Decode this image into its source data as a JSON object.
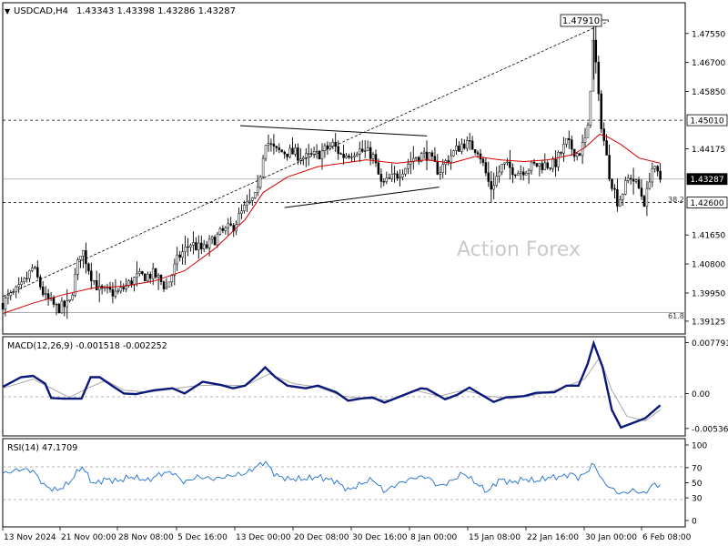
{
  "header": {
    "symbol": "USDCAD,H4",
    "ohlc": "1.43343 1.43398 1.43286 1.43287"
  },
  "macd_header": "MACD(12,26,9) -0.001518 -0.002252",
  "rsi_header": "RSI(14) 47.1709",
  "watermark": "Action Forex",
  "annotations": {
    "high_label": "1.47910",
    "fib_382": "38.2",
    "fib_618": "61.8"
  },
  "colors": {
    "background": "#ffffff",
    "candle": "#000000",
    "ma": "#d40000",
    "macd_line": "#0b1a7a",
    "signal_line": "#a8a8a8",
    "rsi_line": "#1e6fd0",
    "grid": "#d8d8d8"
  },
  "chart_data": [
    {
      "type": "candlestick",
      "ylim": [
        1.3875,
        1.4845
      ],
      "price_ticks": [
        "1.47550",
        "1.46700",
        "1.45850",
        "1.44175",
        "1.41650",
        "1.40800",
        "1.39950",
        "1.39125"
      ],
      "price_tick_values": [
        1.4755,
        1.467,
        1.4585,
        1.44175,
        1.4165,
        1.408,
        1.3995,
        1.39125
      ],
      "x_labels": [
        "13 Nov 2024",
        "21 Nov 00:00",
        "28 Nov 08:00",
        "5 Dec 16:00",
        "13 Dec 00:00",
        "20 Dec 08:00",
        "30 Dec 16:00",
        "8 Jan 00:00",
        "15 Jan 08:00",
        "22 Jan 16:00",
        "30 Jan 00:00",
        "6 Feb 08:00"
      ],
      "levels": [
        {
          "label": "1.45010",
          "value": 1.4501,
          "style": "dashed"
        },
        {
          "label": "1.43287",
          "value": 1.43287,
          "style": "solid"
        },
        {
          "label": "1.42600",
          "value": 1.426,
          "style": "dashed"
        },
        {
          "value": 1.39375,
          "style": "solid"
        }
      ],
      "trendline": {
        "from": [
          0,
          1.3985
        ],
        "to": [
          1.0,
          1.4791
        ]
      },
      "triangle": {
        "upper": {
          "from": [
            0.392,
            1.4485
          ],
          "to": [
            0.7,
            1.4455
          ]
        },
        "lower": {
          "from": [
            0.465,
            1.4245
          ],
          "to": [
            0.72,
            1.4305
          ]
        }
      },
      "close_path": [
        [
          0,
          1.3965
        ],
        [
          0.03,
          1.401
        ],
        [
          0.05,
          1.407
        ],
        [
          0.07,
          1.398
        ],
        [
          0.09,
          1.395
        ],
        [
          0.11,
          1.396
        ],
        [
          0.13,
          1.413
        ],
        [
          0.145,
          1.405
        ],
        [
          0.16,
          1.4
        ],
        [
          0.19,
          1.3995
        ],
        [
          0.22,
          1.404
        ],
        [
          0.25,
          1.405
        ],
        [
          0.27,
          1.401
        ],
        [
          0.29,
          1.41
        ],
        [
          0.31,
          1.414
        ],
        [
          0.33,
          1.412
        ],
        [
          0.36,
          1.417
        ],
        [
          0.38,
          1.419
        ],
        [
          0.4,
          1.4245
        ],
        [
          0.42,
          1.428
        ],
        [
          0.433,
          1.4445
        ],
        [
          0.45,
          1.441
        ],
        [
          0.48,
          1.4405
        ],
        [
          0.5,
          1.439
        ],
        [
          0.52,
          1.44
        ],
        [
          0.545,
          1.443
        ],
        [
          0.56,
          1.4395
        ],
        [
          0.585,
          1.4415
        ],
        [
          0.61,
          1.44
        ],
        [
          0.625,
          1.431
        ],
        [
          0.65,
          1.434
        ],
        [
          0.68,
          1.4395
        ],
        [
          0.7,
          1.44
        ],
        [
          0.72,
          1.435
        ],
        [
          0.735,
          1.439
        ],
        [
          0.76,
          1.4435
        ],
        [
          0.785,
          1.4415
        ],
        [
          0.805,
          1.43
        ],
        [
          0.825,
          1.437
        ],
        [
          0.85,
          1.435
        ],
        [
          0.88,
          1.437
        ],
        [
          0.91,
          1.437
        ],
        [
          0.93,
          1.4435
        ],
        [
          0.95,
          1.44
        ],
        [
          0.965,
          1.446
        ],
        [
          0.975,
          1.475
        ],
        [
          0.985,
          1.452
        ],
        [
          1.0,
          1.435
        ],
        [
          1.015,
          1.426
        ],
        [
          1.035,
          1.434
        ],
        [
          1.05,
          1.43
        ],
        [
          1.06,
          1.4255
        ],
        [
          1.07,
          1.4365
        ],
        [
          1.085,
          1.4329
        ]
      ],
      "ma_path": [
        [
          0,
          1.3935
        ],
        [
          0.05,
          1.3965
        ],
        [
          0.1,
          1.399
        ],
        [
          0.15,
          1.401
        ],
        [
          0.2,
          1.4015
        ],
        [
          0.25,
          1.403
        ],
        [
          0.3,
          1.406
        ],
        [
          0.35,
          1.4125
        ],
        [
          0.4,
          1.421
        ],
        [
          0.43,
          1.429
        ],
        [
          0.47,
          1.4335
        ],
        [
          0.52,
          1.4365
        ],
        [
          0.56,
          1.4375
        ],
        [
          0.6,
          1.4385
        ],
        [
          0.65,
          1.4375
        ],
        [
          0.7,
          1.4385
        ],
        [
          0.74,
          1.4375
        ],
        [
          0.78,
          1.4395
        ],
        [
          0.82,
          1.4385
        ],
        [
          0.86,
          1.438
        ],
        [
          0.9,
          1.4385
        ],
        [
          0.94,
          1.44
        ],
        [
          0.96,
          1.442
        ],
        [
          0.985,
          1.446
        ],
        [
          1.0,
          1.445
        ],
        [
          1.02,
          1.443
        ],
        [
          1.05,
          1.439
        ],
        [
          1.085,
          1.4375
        ]
      ]
    },
    {
      "type": "line",
      "name": "MACD(12,26,9)",
      "ylim": [
        -0.0065,
        0.0087
      ],
      "y_ticks": [
        "0.007791",
        "0.00",
        "-0.005367"
      ],
      "y_tick_values": [
        0.007791,
        0.0,
        -0.005367
      ],
      "macd": [
        [
          0,
          0.001
        ],
        [
          0.03,
          0.0025
        ],
        [
          0.05,
          0.0027
        ],
        [
          0.07,
          0.0015
        ],
        [
          0.08,
          -0.0007
        ],
        [
          0.1,
          -0.0008
        ],
        [
          0.13,
          -0.0008
        ],
        [
          0.145,
          0.0025
        ],
        [
          0.16,
          0.0025
        ],
        [
          0.18,
          0.0012
        ],
        [
          0.2,
          0.0
        ],
        [
          0.22,
          -0.0001
        ],
        [
          0.25,
          0.0005
        ],
        [
          0.28,
          0.0008
        ],
        [
          0.3,
          0.0
        ],
        [
          0.33,
          0.0018
        ],
        [
          0.36,
          0.0013
        ],
        [
          0.38,
          0.0008
        ],
        [
          0.4,
          0.0012
        ],
        [
          0.42,
          0.0028
        ],
        [
          0.433,
          0.004
        ],
        [
          0.45,
          0.0025
        ],
        [
          0.47,
          0.0012
        ],
        [
          0.5,
          0.0008
        ],
        [
          0.52,
          0.0012
        ],
        [
          0.55,
          0.0002
        ],
        [
          0.57,
          -0.0011
        ],
        [
          0.59,
          -0.0008
        ],
        [
          0.61,
          -0.0006
        ],
        [
          0.63,
          -0.0014
        ],
        [
          0.66,
          -0.0003
        ],
        [
          0.69,
          0.0008
        ],
        [
          0.7,
          0.0007
        ],
        [
          0.73,
          -0.0009
        ],
        [
          0.75,
          -0.0002
        ],
        [
          0.77,
          0.0009
        ],
        [
          0.79,
          -0.0002
        ],
        [
          0.81,
          -0.0013
        ],
        [
          0.83,
          -0.0006
        ],
        [
          0.86,
          -0.0004
        ],
        [
          0.88,
          0.0001
        ],
        [
          0.91,
          0.0002
        ],
        [
          0.93,
          0.0012
        ],
        [
          0.95,
          0.0012
        ],
        [
          0.965,
          0.0045
        ],
        [
          0.975,
          0.0077
        ],
        [
          0.99,
          0.004
        ],
        [
          1.005,
          -0.0025
        ],
        [
          1.02,
          -0.0052
        ],
        [
          1.04,
          -0.0045
        ],
        [
          1.06,
          -0.0038
        ],
        [
          1.085,
          -0.0018
        ]
      ],
      "signal": [
        [
          0,
          0.0008
        ],
        [
          0.05,
          0.0022
        ],
        [
          0.08,
          0.0008
        ],
        [
          0.11,
          -0.0006
        ],
        [
          0.14,
          0.0008
        ],
        [
          0.17,
          0.002
        ],
        [
          0.2,
          0.0005
        ],
        [
          0.24,
          0.0002
        ],
        [
          0.28,
          0.0007
        ],
        [
          0.32,
          0.0012
        ],
        [
          0.36,
          0.0013
        ],
        [
          0.4,
          0.0012
        ],
        [
          0.44,
          0.003
        ],
        [
          0.48,
          0.0015
        ],
        [
          0.52,
          0.001
        ],
        [
          0.56,
          -0.0004
        ],
        [
          0.6,
          -0.0008
        ],
        [
          0.64,
          -0.001
        ],
        [
          0.68,
          0.0005
        ],
        [
          0.72,
          -0.0004
        ],
        [
          0.76,
          0.0005
        ],
        [
          0.8,
          -0.0004
        ],
        [
          0.84,
          -0.0008
        ],
        [
          0.88,
          -0.0002
        ],
        [
          0.92,
          0.0007
        ],
        [
          0.96,
          0.0022
        ],
        [
          0.985,
          0.0055
        ],
        [
          1.005,
          0.0005
        ],
        [
          1.03,
          -0.0035
        ],
        [
          1.06,
          -0.0042
        ],
        [
          1.085,
          -0.0025
        ]
      ]
    },
    {
      "type": "line",
      "name": "RSI(14)",
      "ylim": [
        0,
        100
      ],
      "y_ticks": [
        "100",
        "70",
        "50",
        "30",
        "0"
      ],
      "y_tick_values": [
        100,
        70,
        50,
        30,
        0
      ],
      "rsi_path": [
        [
          0,
          62
        ],
        [
          0.03,
          68
        ],
        [
          0.05,
          66
        ],
        [
          0.07,
          45
        ],
        [
          0.09,
          40
        ],
        [
          0.11,
          50
        ],
        [
          0.13,
          72
        ],
        [
          0.15,
          48
        ],
        [
          0.17,
          55
        ],
        [
          0.19,
          52
        ],
        [
          0.21,
          58
        ],
        [
          0.24,
          53
        ],
        [
          0.26,
          62
        ],
        [
          0.28,
          64
        ],
        [
          0.3,
          50
        ],
        [
          0.32,
          58
        ],
        [
          0.35,
          55
        ],
        [
          0.38,
          60
        ],
        [
          0.4,
          62
        ],
        [
          0.42,
          72
        ],
        [
          0.433,
          78
        ],
        [
          0.45,
          60
        ],
        [
          0.47,
          55
        ],
        [
          0.5,
          55
        ],
        [
          0.52,
          58
        ],
        [
          0.55,
          52
        ],
        [
          0.57,
          40
        ],
        [
          0.59,
          48
        ],
        [
          0.61,
          55
        ],
        [
          0.63,
          38
        ],
        [
          0.65,
          48
        ],
        [
          0.68,
          57
        ],
        [
          0.7,
          58
        ],
        [
          0.72,
          45
        ],
        [
          0.74,
          52
        ],
        [
          0.76,
          63
        ],
        [
          0.78,
          50
        ],
        [
          0.8,
          38
        ],
        [
          0.82,
          55
        ],
        [
          0.84,
          50
        ],
        [
          0.86,
          55
        ],
        [
          0.88,
          52
        ],
        [
          0.9,
          57
        ],
        [
          0.92,
          58
        ],
        [
          0.94,
          62
        ],
        [
          0.95,
          56
        ],
        [
          0.965,
          65
        ],
        [
          0.975,
          76
        ],
        [
          0.99,
          52
        ],
        [
          1.005,
          42
        ],
        [
          1.02,
          35
        ],
        [
          1.04,
          40
        ],
        [
          1.06,
          35
        ],
        [
          1.07,
          47
        ],
        [
          1.085,
          47
        ]
      ]
    }
  ]
}
